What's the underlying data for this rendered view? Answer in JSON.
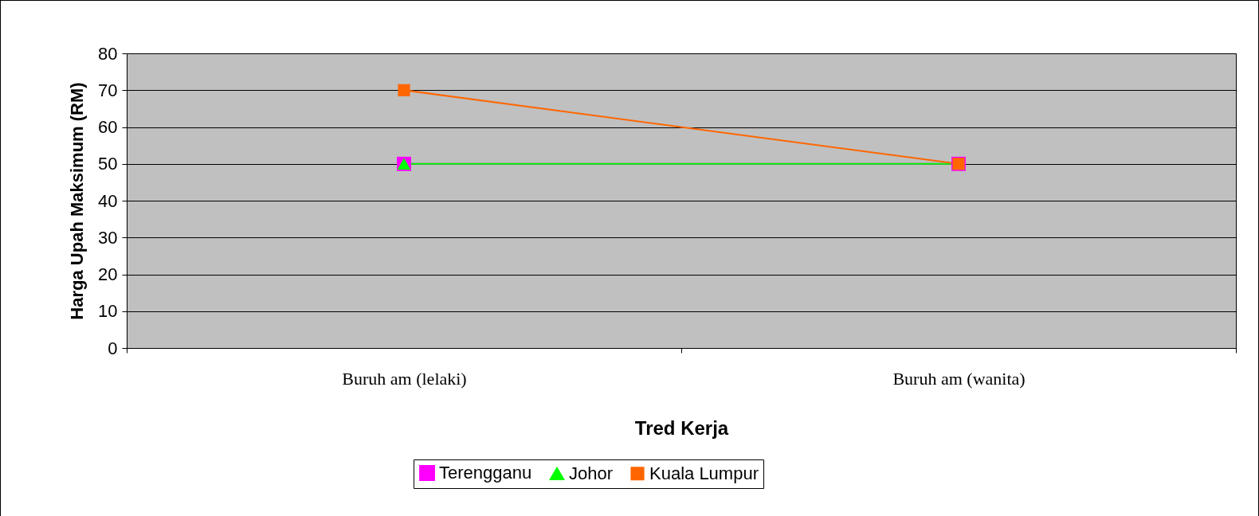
{
  "chart_data": {
    "type": "line",
    "xlabel": "Tred Kerja",
    "ylabel": "Harga Upah Maksimum (RM)",
    "categories": [
      "Buruh am (lelaki)",
      "Buruh am (wanita)"
    ],
    "series": [
      {
        "name": "Terengganu",
        "color": "#ff00ff",
        "marker": "square",
        "values": [
          50,
          50
        ]
      },
      {
        "name": "Johor",
        "color": "#00ff00",
        "marker": "triangle",
        "values": [
          50,
          50
        ]
      },
      {
        "name": "Kuala Lumpur",
        "color": "#ff6600",
        "marker": "square",
        "values": [
          70,
          50
        ]
      }
    ],
    "ylim": [
      0,
      80
    ],
    "yticks": [
      0,
      10,
      20,
      30,
      40,
      50,
      60,
      70,
      80
    ],
    "grid": "y",
    "legend": "bottom",
    "line_style": "solid"
  }
}
